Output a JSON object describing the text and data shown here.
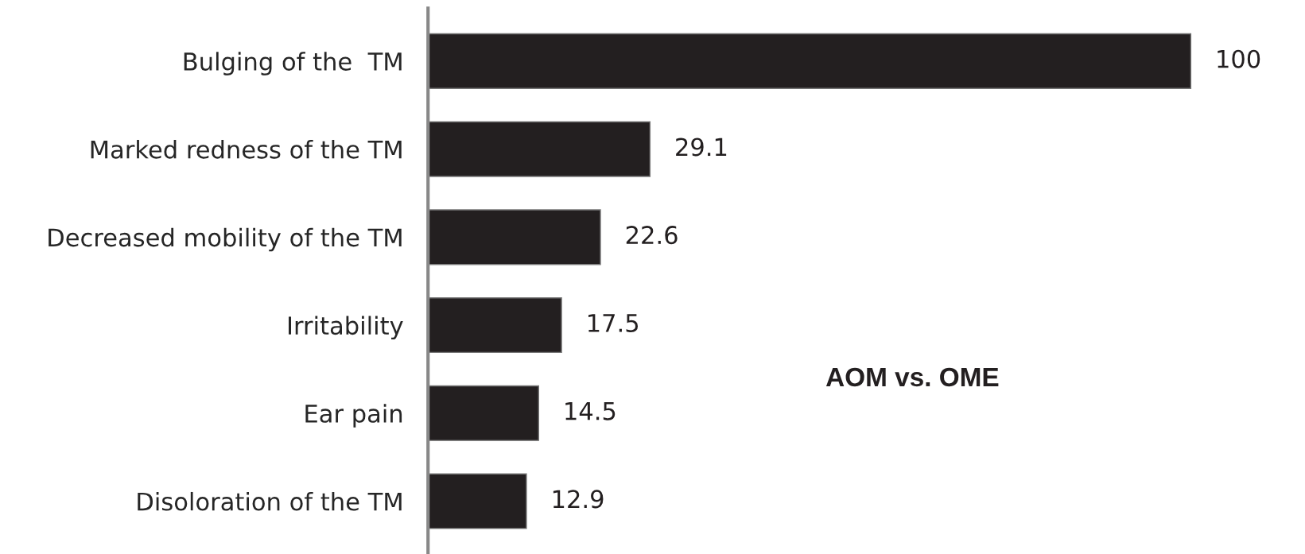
{
  "chart_data": {
    "type": "bar",
    "orientation": "horizontal",
    "title": "AOM vs. OME",
    "categories": [
      "Bulging of the  TM",
      "Marked redness of the TM",
      "Decreased mobility of the TM",
      "Irritability",
      "Ear pain",
      "Disoloration of the TM"
    ],
    "values": [
      100,
      29.1,
      22.6,
      17.5,
      14.5,
      12.9
    ],
    "color": "#231f20",
    "data_labels": true,
    "grid": false,
    "legend": false
  }
}
